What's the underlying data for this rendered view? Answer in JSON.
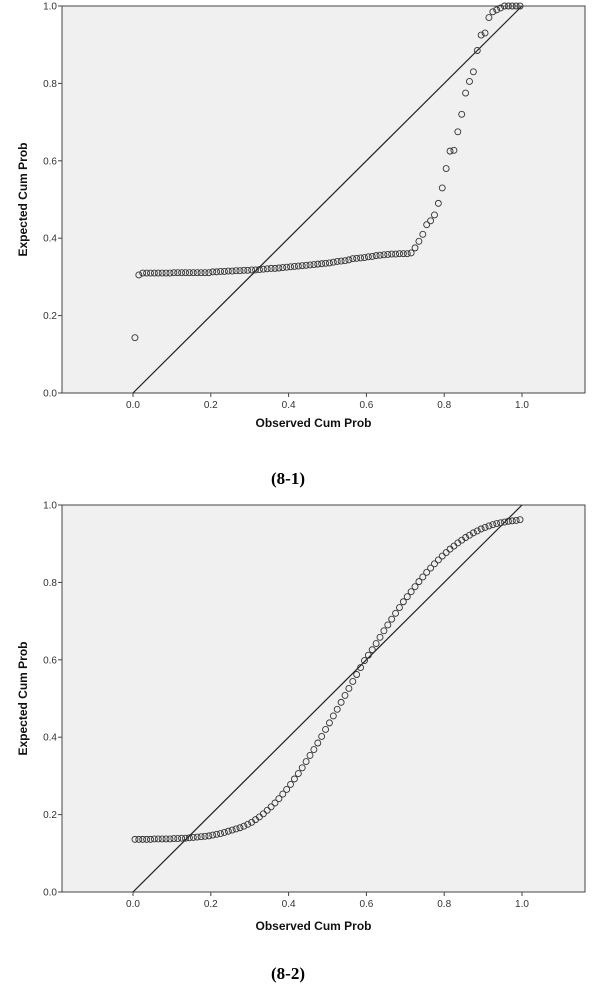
{
  "chart_data": [
    {
      "type": "scatter",
      "title": "",
      "caption": "(8-1)",
      "xlabel": "Observed Cum Prob",
      "ylabel": "Expected Cum Prob",
      "xlim": [
        -0.18,
        1.17
      ],
      "ylim": [
        0,
        1
      ],
      "xticks": [
        "0.0",
        "0.2",
        "0.4",
        "0.6",
        "0.8",
        "1.0"
      ],
      "yticks": [
        "0.0",
        "0.2",
        "0.4",
        "0.6",
        "0.8",
        "1.0"
      ],
      "reference_line": [
        [
          0,
          0
        ],
        [
          1,
          1
        ]
      ],
      "background": "#f0f0f0",
      "grid": false,
      "x_start": 0.005,
      "x_step": 0.01,
      "y": [
        0.143,
        0.305,
        0.31,
        0.31,
        0.31,
        0.31,
        0.31,
        0.31,
        0.31,
        0.31,
        0.311,
        0.311,
        0.311,
        0.311,
        0.311,
        0.311,
        0.311,
        0.311,
        0.311,
        0.311,
        0.313,
        0.313,
        0.314,
        0.314,
        0.315,
        0.315,
        0.316,
        0.316,
        0.317,
        0.317,
        0.318,
        0.318,
        0.319,
        0.32,
        0.321,
        0.322,
        0.322,
        0.323,
        0.324,
        0.325,
        0.326,
        0.327,
        0.328,
        0.329,
        0.33,
        0.331,
        0.332,
        0.333,
        0.334,
        0.335,
        0.336,
        0.338,
        0.34,
        0.341,
        0.342,
        0.344,
        0.347,
        0.348,
        0.349,
        0.35,
        0.352,
        0.353,
        0.355,
        0.356,
        0.357,
        0.358,
        0.359,
        0.359,
        0.36,
        0.36,
        0.36,
        0.362,
        0.375,
        0.392,
        0.41,
        0.435,
        0.445,
        0.46,
        0.49,
        0.53,
        0.58,
        0.625,
        0.627,
        0.675,
        0.72,
        0.775,
        0.805,
        0.83,
        0.885,
        0.925,
        0.93,
        0.97,
        0.985,
        0.99,
        0.995,
        1.0,
        1.0,
        1.0,
        1.0,
        1.0
      ]
    },
    {
      "type": "scatter",
      "title": "",
      "caption": "(8-2)",
      "xlabel": "Observed Cum Prob",
      "ylabel": "Expected Cum Prob",
      "xlim": [
        -0.18,
        1.17
      ],
      "ylim": [
        0,
        1
      ],
      "xticks": [
        "0.0",
        "0.2",
        "0.4",
        "0.6",
        "0.8",
        "1.0"
      ],
      "yticks": [
        "0.0",
        "0.2",
        "0.4",
        "0.6",
        "0.8",
        "1.0"
      ],
      "reference_line": [
        [
          0,
          0
        ],
        [
          1,
          1
        ]
      ],
      "background": "#f0f0f0",
      "grid": false,
      "x_start": 0.005,
      "x_step": 0.01,
      "y": [
        0.136,
        0.136,
        0.136,
        0.136,
        0.136,
        0.137,
        0.137,
        0.137,
        0.137,
        0.137,
        0.138,
        0.138,
        0.139,
        0.139,
        0.14,
        0.141,
        0.142,
        0.143,
        0.144,
        0.145,
        0.147,
        0.149,
        0.151,
        0.154,
        0.157,
        0.16,
        0.163,
        0.166,
        0.17,
        0.175,
        0.18,
        0.187,
        0.194,
        0.202,
        0.211,
        0.22,
        0.23,
        0.241,
        0.253,
        0.265,
        0.278,
        0.292,
        0.306,
        0.321,
        0.337,
        0.353,
        0.368,
        0.385,
        0.402,
        0.42,
        0.437,
        0.455,
        0.472,
        0.49,
        0.508,
        0.526,
        0.544,
        0.562,
        0.58,
        0.598,
        0.612,
        0.626,
        0.642,
        0.658,
        0.675,
        0.69,
        0.705,
        0.72,
        0.735,
        0.75,
        0.763,
        0.776,
        0.789,
        0.802,
        0.814,
        0.826,
        0.837,
        0.848,
        0.858,
        0.868,
        0.877,
        0.886,
        0.894,
        0.902,
        0.909,
        0.916,
        0.922,
        0.928,
        0.933,
        0.938,
        0.942,
        0.946,
        0.949,
        0.952,
        0.954,
        0.956,
        0.958,
        0.959,
        0.96,
        0.962
      ]
    }
  ]
}
